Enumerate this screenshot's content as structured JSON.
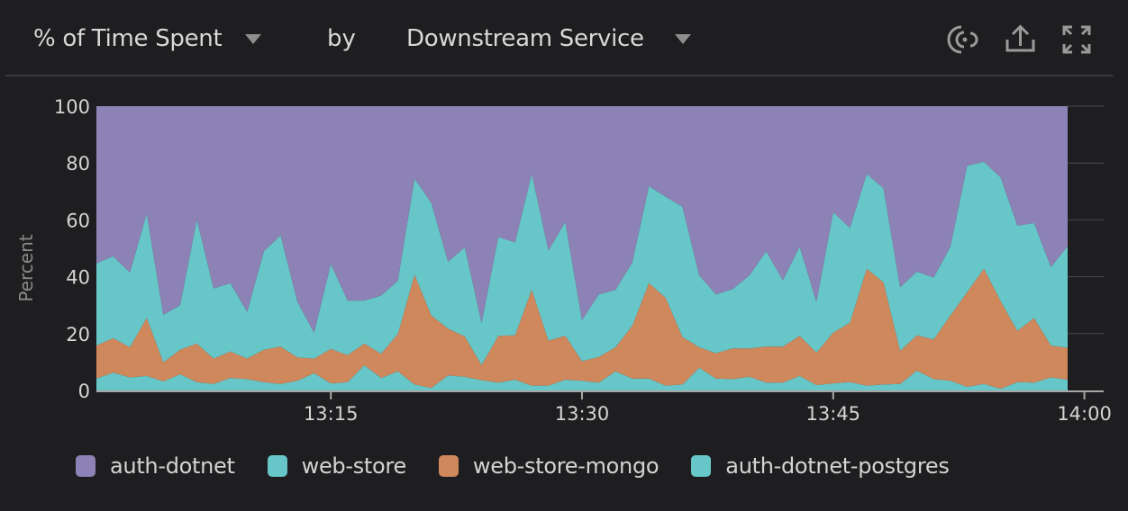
{
  "header": {
    "metric_label": "% of Time Spent",
    "by_label": "by",
    "group_label": "Downstream Service",
    "icons": [
      "live-signal-icon",
      "share-upload-icon",
      "expand-fullscreen-icon"
    ]
  },
  "colors": {
    "background": "#1e1e20",
    "auth-dotnet": "#8d82b6",
    "web-store": "#67c6c7",
    "web-store-mongo": "#cf875c",
    "auth-dotnet-postgres": "#67c6c7",
    "axis": "#a7a7a7",
    "gridline": "#4a4a4c"
  },
  "legend": [
    {
      "label": "auth-dotnet",
      "color": "#8d82b6"
    },
    {
      "label": "web-store",
      "color": "#67c6c7"
    },
    {
      "label": "web-store-mongo",
      "color": "#cf875c"
    },
    {
      "label": "auth-dotnet-postgres",
      "color": "#67c6c7"
    }
  ],
  "chart_data": {
    "type": "area",
    "stacked": true,
    "normalized_percent": true,
    "title": "% of Time Spent by Downstream Service",
    "xlabel": "",
    "ylabel": "Percent",
    "ylim": [
      0,
      100
    ],
    "y_ticks": [
      0,
      20,
      40,
      60,
      80,
      100
    ],
    "x_tick_labels": [
      "13:15",
      "13:30",
      "13:45",
      "14:00"
    ],
    "x_tick_index": [
      14,
      29,
      44,
      59
    ],
    "legend_position": "bottom",
    "grid": "right-side tick marks only",
    "x_start": "13:01",
    "x_step_minutes": 1,
    "x": [
      "13:01",
      "13:02",
      "13:03",
      "13:04",
      "13:05",
      "13:06",
      "13:07",
      "13:08",
      "13:09",
      "13:10",
      "13:11",
      "13:12",
      "13:13",
      "13:14",
      "13:15",
      "13:16",
      "13:17",
      "13:18",
      "13:19",
      "13:20",
      "13:21",
      "13:22",
      "13:23",
      "13:24",
      "13:25",
      "13:26",
      "13:27",
      "13:28",
      "13:29",
      "13:30",
      "13:31",
      "13:32",
      "13:33",
      "13:34",
      "13:35",
      "13:36",
      "13:37",
      "13:38",
      "13:39",
      "13:40",
      "13:41",
      "13:42",
      "13:43",
      "13:44",
      "13:45",
      "13:46",
      "13:47",
      "13:48",
      "13:49",
      "13:50",
      "13:51",
      "13:52",
      "13:53",
      "13:54",
      "13:55",
      "13:56",
      "13:57",
      "13:58",
      "13:59"
    ],
    "series_stack_order_bottom_to_top": [
      "auth-dotnet-postgres",
      "web-store-mongo",
      "web-store",
      "auth-dotnet"
    ],
    "series": [
      {
        "name": "auth-dotnet-postgres",
        "values": [
          4.2,
          6.3,
          4.6,
          5.1,
          3.2,
          5.7,
          2.9,
          2.3,
          4.4,
          4.0,
          2.9,
          2.3,
          3.4,
          6.1,
          2.5,
          2.9,
          8.9,
          4.4,
          6.7,
          2.1,
          0.9,
          5.3,
          4.8,
          3.6,
          2.8,
          3.8,
          1.7,
          1.7,
          3.8,
          3.4,
          2.8,
          6.7,
          4.2,
          4.2,
          1.7,
          2.1,
          8.0,
          4.2,
          4.0,
          4.8,
          2.8,
          2.8,
          5.1,
          1.9,
          2.5,
          2.9,
          1.7,
          2.1,
          2.3,
          7.0,
          4.0,
          3.4,
          1.3,
          2.3,
          0.6,
          2.9,
          2.8,
          4.6,
          3.8
        ]
      },
      {
        "name": "web-store-mongo",
        "values": [
          11.6,
          12.1,
          10.6,
          20.4,
          6.7,
          8.6,
          13.6,
          8.9,
          9.3,
          7.2,
          11.4,
          13.1,
          8.2,
          5.1,
          12.1,
          9.5,
          7.6,
          8.5,
          13.1,
          38.6,
          25.5,
          16.4,
          14.2,
          5.3,
          16.4,
          15.6,
          33.7,
          15.8,
          15.4,
          6.9,
          9.0,
          8.5,
          18.6,
          33.6,
          30.8,
          16.7,
          7.2,
          8.9,
          10.8,
          10.0,
          12.6,
          12.6,
          14.1,
          11.4,
          17.8,
          20.9,
          41.1,
          35.9,
          11.6,
          12.4,
          13.9,
          23.0,
          33.3,
          40.5,
          30.8,
          18.0,
          22.7,
          11.2,
          11.2
        ]
      },
      {
        "name": "web-store",
        "values": [
          28.9,
          28.8,
          26.3,
          36.7,
          16.7,
          15.7,
          43.6,
          24.7,
          24.1,
          16.4,
          34.7,
          39.2,
          19.7,
          9.1,
          29.9,
          19.2,
          15.1,
          20.5,
          18.8,
          33.8,
          39.6,
          23.6,
          31.4,
          14.9,
          34.8,
          32.7,
          40.8,
          31.7,
          40.1,
          14.4,
          22.0,
          20.2,
          22.3,
          34.1,
          35.6,
          45.8,
          25.3,
          20.7,
          20.9,
          25.7,
          33.6,
          23.4,
          31.4,
          17.9,
          42.4,
          33.4,
          33.4,
          33.1,
          22.4,
          22.4,
          21.8,
          24.2,
          44.5,
          37.6,
          43.5,
          37.1,
          33.4,
          27.6,
          35.8
        ]
      },
      {
        "name": "auth-dotnet",
        "values": [
          55.3,
          52.8,
          58.5,
          37.8,
          73.4,
          70.0,
          39.9,
          64.1,
          62.2,
          72.4,
          51.0,
          45.4,
          68.7,
          79.7,
          55.5,
          68.4,
          68.4,
          66.6,
          61.4,
          25.5,
          34.0,
          54.7,
          49.6,
          76.2,
          46.0,
          47.9,
          23.8,
          50.8,
          40.7,
          75.3,
          66.2,
          64.6,
          54.9,
          28.1,
          31.9,
          35.4,
          59.5,
          66.2,
          64.3,
          59.5,
          51.0,
          61.2,
          49.4,
          68.8,
          37.3,
          42.8,
          23.8,
          28.9,
          63.7,
          58.2,
          60.3,
          49.4,
          20.9,
          19.6,
          25.1,
          42.0,
          41.1,
          56.6,
          49.2
        ]
      }
    ]
  }
}
